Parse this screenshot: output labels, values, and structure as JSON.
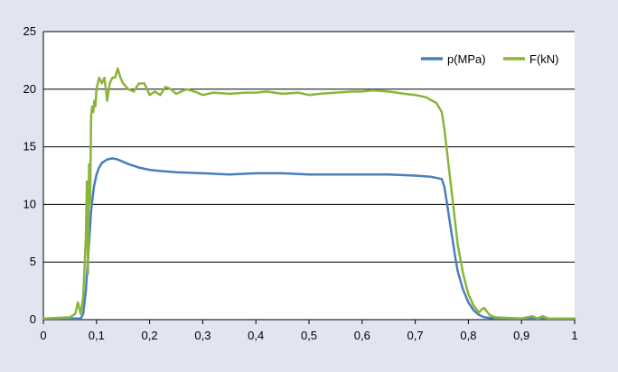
{
  "chart_data": {
    "type": "line",
    "title": "",
    "xlabel": "",
    "ylabel": "",
    "xlim": [
      0,
      1
    ],
    "ylim": [
      0,
      25
    ],
    "x_ticks": [
      0,
      0.1,
      0.2,
      0.3,
      0.4,
      0.5,
      0.6,
      0.7,
      0.8,
      0.9,
      1
    ],
    "x_tick_labels": [
      "0",
      "0,1",
      "0,2",
      "0,3",
      "0,4",
      "0,5",
      "0,6",
      "0,7",
      "0,8",
      "0,9",
      "1"
    ],
    "y_ticks": [
      0,
      5,
      10,
      15,
      20,
      25
    ],
    "y_tick_labels": [
      "0",
      "5",
      "10",
      "15",
      "20",
      "25"
    ],
    "grid": "horizontal",
    "legend_position": "top-right",
    "colors": {
      "background": "#e1e5f0",
      "plot_background": "#ffffff",
      "grid": "#000000",
      "p_series": "#4a7ebb",
      "f_series": "#8cb43c"
    },
    "series": [
      {
        "name": "p(MPa)",
        "color": "#4a7ebb",
        "x": [
          0,
          0.05,
          0.07,
          0.075,
          0.08,
          0.085,
          0.09,
          0.095,
          0.1,
          0.105,
          0.11,
          0.12,
          0.13,
          0.14,
          0.15,
          0.16,
          0.18,
          0.2,
          0.22,
          0.25,
          0.3,
          0.35,
          0.4,
          0.45,
          0.5,
          0.55,
          0.6,
          0.65,
          0.7,
          0.73,
          0.75,
          0.755,
          0.76,
          0.765,
          0.77,
          0.775,
          0.78,
          0.79,
          0.8,
          0.81,
          0.82,
          0.83,
          0.85,
          0.9,
          0.95,
          1
        ],
        "y": [
          0.1,
          0.1,
          0.1,
          0.5,
          2.5,
          6,
          9.5,
          11.5,
          12.6,
          13.2,
          13.6,
          13.9,
          14.0,
          13.9,
          13.7,
          13.5,
          13.2,
          13.0,
          12.9,
          12.8,
          12.7,
          12.6,
          12.7,
          12.7,
          12.6,
          12.6,
          12.6,
          12.6,
          12.5,
          12.4,
          12.2,
          11.5,
          10.0,
          8.5,
          7.0,
          5.5,
          4.2,
          2.6,
          1.5,
          0.8,
          0.4,
          0.2,
          0.1,
          0.1,
          0.1,
          0.1
        ]
      },
      {
        "name": "F(kN)",
        "color": "#8cb43c",
        "x": [
          0,
          0.05,
          0.06,
          0.065,
          0.07,
          0.075,
          0.08,
          0.082,
          0.084,
          0.086,
          0.088,
          0.09,
          0.092,
          0.094,
          0.096,
          0.098,
          0.1,
          0.105,
          0.11,
          0.115,
          0.12,
          0.125,
          0.13,
          0.135,
          0.14,
          0.145,
          0.15,
          0.16,
          0.17,
          0.18,
          0.19,
          0.2,
          0.21,
          0.22,
          0.23,
          0.24,
          0.25,
          0.27,
          0.29,
          0.3,
          0.32,
          0.35,
          0.38,
          0.4,
          0.42,
          0.45,
          0.48,
          0.5,
          0.52,
          0.55,
          0.58,
          0.6,
          0.62,
          0.65,
          0.68,
          0.7,
          0.72,
          0.74,
          0.75,
          0.755,
          0.76,
          0.765,
          0.77,
          0.775,
          0.78,
          0.79,
          0.8,
          0.81,
          0.82,
          0.825,
          0.83,
          0.835,
          0.84,
          0.85,
          0.9,
          0.92,
          0.93,
          0.94,
          0.95,
          1
        ],
        "y": [
          0.1,
          0.2,
          0.5,
          1.5,
          0.5,
          2.0,
          7.0,
          12.0,
          4.0,
          13.5,
          10.0,
          17.8,
          18.5,
          18.0,
          19.0,
          18.5,
          20.0,
          21.0,
          20.5,
          21.0,
          19.0,
          20.5,
          21.0,
          21.0,
          21.8,
          21.0,
          20.5,
          20.0,
          19.8,
          20.5,
          20.5,
          19.5,
          19.8,
          19.5,
          20.2,
          20.0,
          19.6,
          20.0,
          19.7,
          19.5,
          19.7,
          19.6,
          19.7,
          19.7,
          19.8,
          19.6,
          19.7,
          19.5,
          19.6,
          19.7,
          19.8,
          19.8,
          19.9,
          19.8,
          19.6,
          19.5,
          19.3,
          18.8,
          18.0,
          16.5,
          14.5,
          12.5,
          10.5,
          8.5,
          6.5,
          4.0,
          2.2,
          1.2,
          0.6,
          0.9,
          1.0,
          0.7,
          0.4,
          0.2,
          0.1,
          0.3,
          0.1,
          0.3,
          0.1,
          0.1
        ]
      }
    ]
  }
}
